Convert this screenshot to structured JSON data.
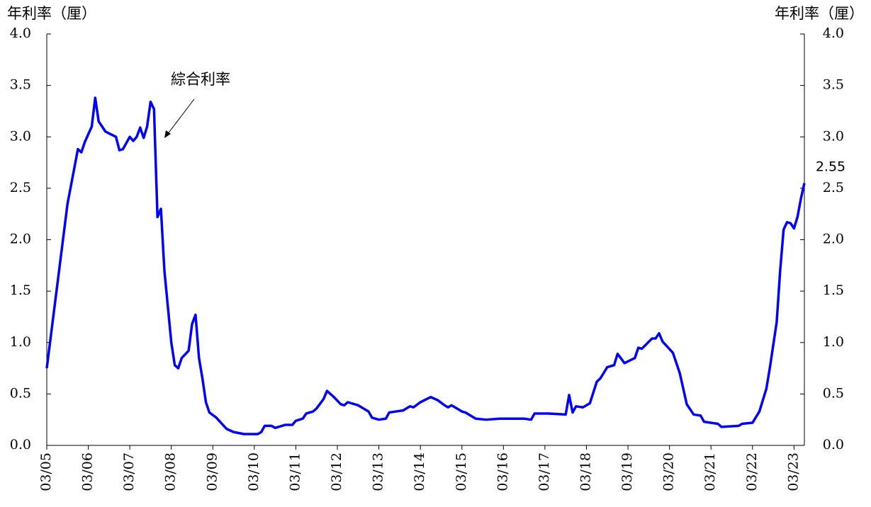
{
  "chart_data": {
    "type": "line",
    "y_label": "年利率（厘）",
    "y2_label": "年利率（厘）",
    "annotation": "綜合利率",
    "end_label": "2.55",
    "xlim": [
      0,
      219
    ],
    "xticks": [
      {
        "value": 0,
        "label": "03/05"
      },
      {
        "value": 12,
        "label": "03/06"
      },
      {
        "value": 24,
        "label": "03/07"
      },
      {
        "value": 36,
        "label": "03/08"
      },
      {
        "value": 48,
        "label": "03/09"
      },
      {
        "value": 60,
        "label": "03/10"
      },
      {
        "value": 72,
        "label": "03/11"
      },
      {
        "value": 84,
        "label": "03/12"
      },
      {
        "value": 96,
        "label": "03/13"
      },
      {
        "value": 108,
        "label": "03/14"
      },
      {
        "value": 120,
        "label": "03/15"
      },
      {
        "value": 132,
        "label": "03/16"
      },
      {
        "value": 144,
        "label": "03/17"
      },
      {
        "value": 156,
        "label": "03/18"
      },
      {
        "value": 168,
        "label": "03/19"
      },
      {
        "value": 180,
        "label": "03/20"
      },
      {
        "value": 192,
        "label": "03/21"
      },
      {
        "value": 204,
        "label": "03/22"
      },
      {
        "value": 216,
        "label": "03/23"
      }
    ],
    "ylim": [
      0,
      4
    ],
    "yticks": [
      {
        "value": 0,
        "label": "0.0"
      },
      0.5,
      {
        "value": 1,
        "label": "1.0"
      },
      1.5,
      {
        "value": 2,
        "label": "2.0"
      },
      2.5,
      {
        "value": 3,
        "label": "3.0"
      },
      3.5,
      {
        "value": 4,
        "label": "4.0"
      }
    ],
    "y2lim": [
      0,
      4
    ],
    "y2ticks": [
      {
        "value": 0,
        "label": "0.0"
      },
      0.5,
      {
        "value": 1,
        "label": "1.0"
      },
      1.5,
      {
        "value": 2,
        "label": "2.0"
      },
      2.5,
      {
        "value": 3,
        "label": "3.0"
      },
      3.5,
      {
        "value": 4,
        "label": "4.0"
      }
    ],
    "x": [
      0,
      6,
      9,
      10,
      11,
      13,
      14,
      15,
      17,
      20,
      21,
      22,
      24,
      25,
      26,
      27,
      28,
      29,
      30,
      31,
      32,
      33,
      34,
      35,
      36,
      37,
      38,
      39,
      41,
      42,
      43,
      44,
      45,
      46,
      47,
      49,
      52,
      54,
      57,
      61,
      62,
      63,
      65,
      66,
      69,
      71,
      72,
      74,
      75,
      77,
      78,
      80,
      81,
      83,
      85,
      86,
      87,
      90,
      93,
      94,
      96,
      98,
      99,
      101,
      103,
      105,
      106,
      108,
      111,
      113,
      115,
      116,
      117,
      119,
      120,
      121,
      124,
      127,
      131,
      135,
      138,
      140,
      141,
      145,
      150,
      151,
      152,
      153,
      155,
      157,
      159,
      160,
      162,
      164,
      165,
      167,
      170,
      171,
      172,
      175,
      176,
      177,
      178,
      181,
      183,
      185,
      187,
      189,
      190,
      194,
      195,
      200,
      201,
      204,
      206,
      208,
      209,
      211,
      212,
      213,
      214,
      215,
      216,
      217,
      218,
      219
    ],
    "series": [
      {
        "name": "綜合利率",
        "color": "#0000ff",
        "values": [
          0.75,
          2.35,
          2.88,
          2.85,
          2.95,
          3.1,
          3.38,
          3.15,
          3.05,
          3.0,
          2.87,
          2.88,
          3.0,
          2.96,
          3.0,
          3.09,
          2.99,
          3.1,
          3.34,
          3.27,
          2.22,
          2.3,
          1.7,
          1.35,
          1.0,
          0.78,
          0.75,
          0.85,
          0.92,
          1.18,
          1.27,
          0.85,
          0.65,
          0.42,
          0.32,
          0.27,
          0.16,
          0.13,
          0.11,
          0.11,
          0.13,
          0.19,
          0.19,
          0.17,
          0.2,
          0.2,
          0.24,
          0.26,
          0.31,
          0.33,
          0.36,
          0.45,
          0.53,
          0.47,
          0.4,
          0.39,
          0.42,
          0.39,
          0.33,
          0.27,
          0.25,
          0.26,
          0.32,
          0.33,
          0.34,
          0.38,
          0.37,
          0.42,
          0.47,
          0.44,
          0.39,
          0.37,
          0.39,
          0.35,
          0.33,
          0.32,
          0.26,
          0.25,
          0.26,
          0.26,
          0.26,
          0.25,
          0.31,
          0.31,
          0.3,
          0.49,
          0.32,
          0.38,
          0.37,
          0.41,
          0.62,
          0.65,
          0.76,
          0.78,
          0.89,
          0.8,
          0.85,
          0.95,
          0.94,
          1.04,
          1.04,
          1.09,
          1.01,
          0.9,
          0.7,
          0.4,
          0.3,
          0.29,
          0.23,
          0.21,
          0.18,
          0.19,
          0.21,
          0.22,
          0.33,
          0.55,
          0.75,
          1.2,
          1.7,
          2.1,
          2.17,
          2.16,
          2.11,
          2.22,
          2.4,
          2.55
        ]
      }
    ]
  }
}
